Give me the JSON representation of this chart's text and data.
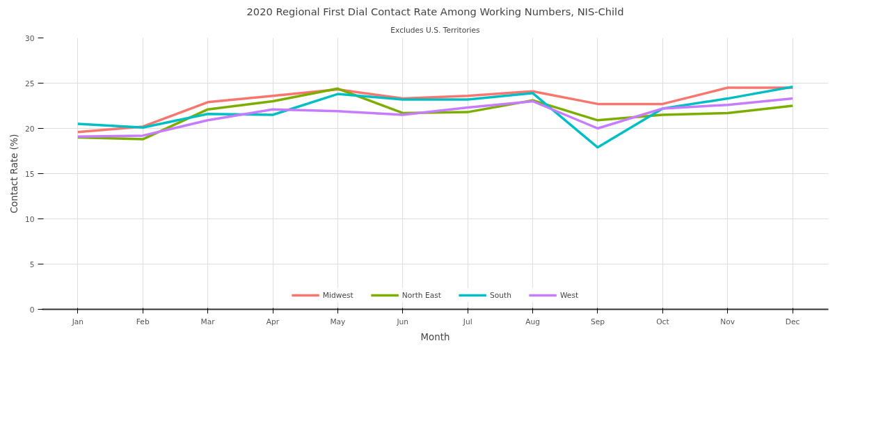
{
  "chart_data": {
    "type": "line",
    "title": "2020 Regional First Dial Contact Rate Among Working Numbers, NIS-Child",
    "subtitle": "Excludes U.S. Territories",
    "xlabel": "Month",
    "ylabel": "Contact Rate (%)",
    "categories": [
      "Jan",
      "Feb",
      "Mar",
      "Apr",
      "May",
      "Jun",
      "Jul",
      "Aug",
      "Sep",
      "Oct",
      "Nov",
      "Dec"
    ],
    "series": [
      {
        "name": "Midwest",
        "color": "#f8766d",
        "values": [
          19.6,
          20.2,
          22.9,
          23.6,
          24.3,
          23.3,
          23.6,
          24.1,
          22.7,
          22.7,
          24.5,
          24.5
        ]
      },
      {
        "name": "North East",
        "color": "#7cae00",
        "values": [
          19.0,
          18.8,
          22.1,
          23.0,
          24.4,
          21.7,
          21.8,
          23.1,
          20.9,
          21.5,
          21.7,
          22.5
        ]
      },
      {
        "name": "South",
        "color": "#00bfc4",
        "values": [
          20.5,
          20.1,
          21.6,
          21.5,
          23.8,
          23.2,
          23.2,
          23.9,
          17.9,
          22.2,
          23.3,
          24.6
        ]
      },
      {
        "name": "West",
        "color": "#c77cff",
        "values": [
          19.1,
          19.2,
          20.9,
          22.1,
          21.9,
          21.5,
          22.3,
          23.0,
          20.0,
          22.2,
          22.6,
          23.3
        ]
      }
    ],
    "ylim": [
      0,
      30
    ],
    "yticks": [
      0,
      5,
      10,
      15,
      20,
      25,
      30
    ],
    "grid": true,
    "legend": "bottom",
    "marker": "none",
    "line_style": "solid"
  }
}
